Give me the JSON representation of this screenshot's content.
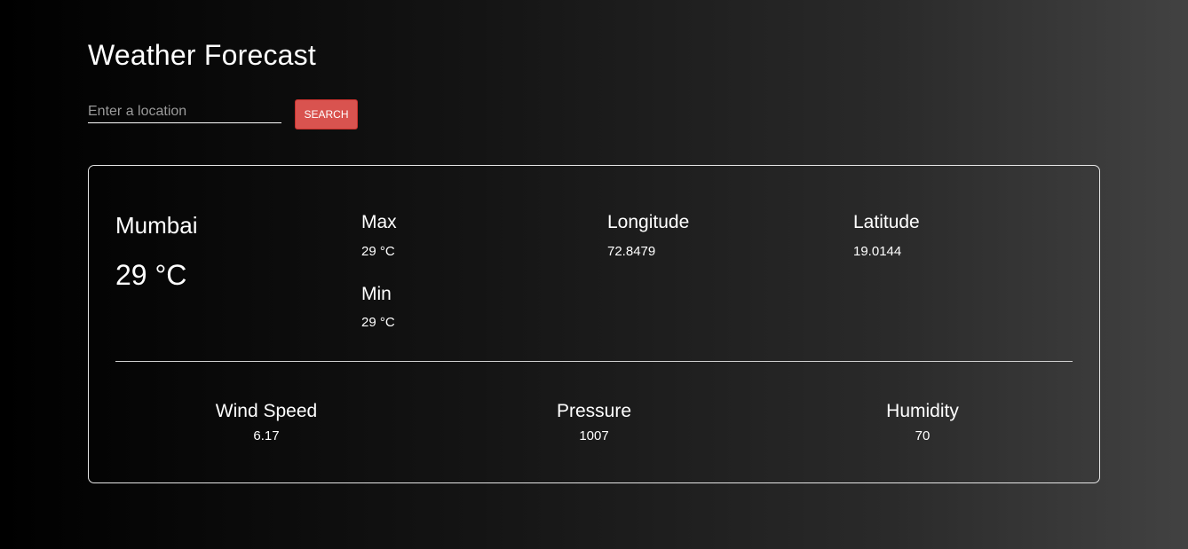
{
  "header": {
    "title": "Weather Forecast"
  },
  "search": {
    "placeholder": "Enter a location",
    "value": "",
    "button_label": "SEARCH",
    "button_color": "#d9534f"
  },
  "weather": {
    "city": "Mumbai",
    "temperature": "29 °C",
    "max": {
      "label": "Max",
      "value": "29 °C"
    },
    "min": {
      "label": "Min",
      "value": "29 °C"
    },
    "longitude": {
      "label": "Longitude",
      "value": "72.8479"
    },
    "latitude": {
      "label": "Latitude",
      "value": "19.0144"
    },
    "wind_speed": {
      "label": "Wind Speed",
      "value": "6.17"
    },
    "pressure": {
      "label": "Pressure",
      "value": "1007"
    },
    "humidity": {
      "label": "Humidity",
      "value": "70"
    }
  }
}
